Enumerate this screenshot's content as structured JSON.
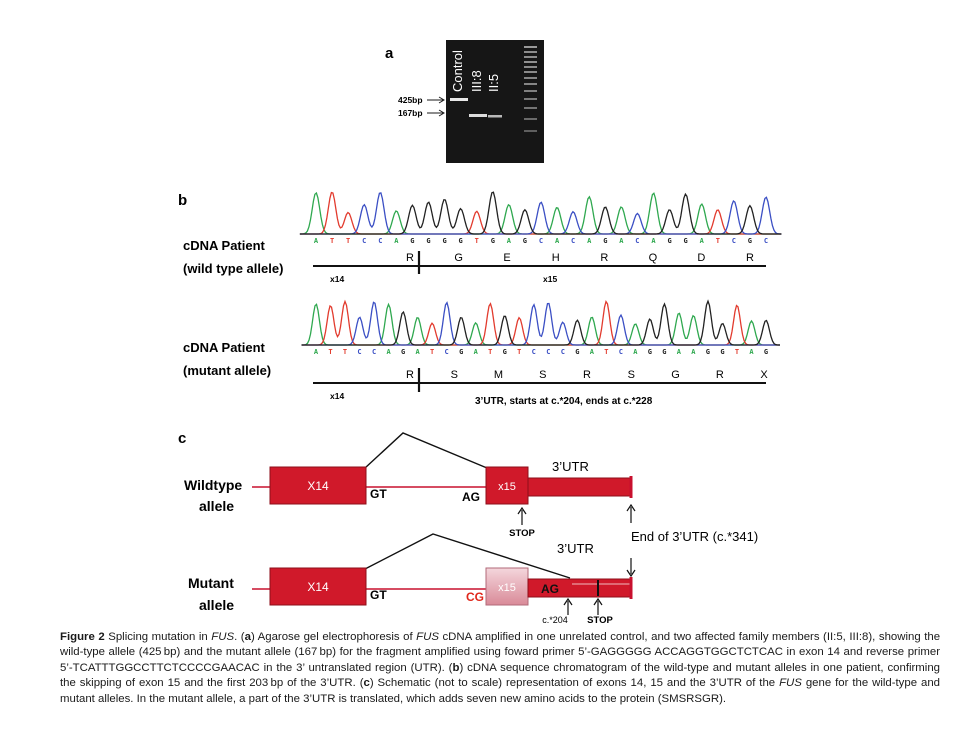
{
  "panel_a": {
    "letter": "a",
    "lanes": [
      "Control",
      "III:8",
      "II:5"
    ],
    "markers": [
      {
        "label": "425bp"
      },
      {
        "label": "167bp"
      }
    ]
  },
  "panel_b": {
    "letter": "b",
    "wild": {
      "label_1": "cDNA Patient",
      "label_2": "(wild type allele)",
      "sequence": "ATTCCAGGGGTGAGCACAGACAGGATCGC",
      "amino_acids": [
        "R",
        "G",
        "E",
        "H",
        "R",
        "Q",
        "D",
        "R"
      ],
      "exon_left": "x14",
      "exon_right": "x15"
    },
    "mutant": {
      "label_1": "cDNA Patient",
      "label_2": "(mutant allele)",
      "sequence": "ATTCCAGATCGATGTCCCGATCAGGAAGGTAG",
      "amino_acids": [
        "R",
        "S",
        "M",
        "S",
        "R",
        "S",
        "G",
        "R",
        "X"
      ],
      "exon_left": "x14",
      "utr_note": "3’UTR, starts at c.*204, ends at c.*228"
    }
  },
  "panel_c": {
    "letter": "c",
    "wild": {
      "label_1": "Wildtype",
      "label_2": "allele",
      "exon14": "X14",
      "exon15": "x15",
      "donor": "GT",
      "acceptor": "AG",
      "utr": "3’UTR",
      "stop": "STOP",
      "end_note": "End of 3’UTR (c.*341)"
    },
    "mutant": {
      "label_1": "Mutant",
      "label_2": "allele",
      "exon14": "X14",
      "exon15": "x15",
      "donor": "GT",
      "cryptic": "CG",
      "acceptor": "AG",
      "utr": "3’UTR",
      "pos": "c.*204",
      "stop": "STOP"
    },
    "colors": {
      "exon": "#d0192a",
      "exon_light": "#e6b4bc",
      "line": "#c8102e"
    }
  },
  "caption": {
    "lead": "Figure 2",
    "body_html": "Splicing mutation in <i>FUS</i>. (<b>a</b>) Agarose gel electrophoresis of <i>FUS</i> cDNA amplified in one unrelated control, and two affected family members (II:5, III:8), showing the wild-type allele (425 bp) and the mutant allele (167 bp) for the fragment amplified using foward primer 5’-GAGGGGG ACCAGGTGGCTCTCAC in exon 14 and reverse primer 5’-TCATTTGGCCTTCTCCCCGAACAC in the 3’ untranslated region (UTR). (<b>b</b>) cDNA sequence chromatogram of the wild-type and mutant alleles in one patient, confirming the skipping of exon 15 and the first 203 bp of the 3’UTR. (<b>c</b>) Schematic (not to scale) representation of exons 14, 15 and the 3’UTR of the <i>FUS</i> gene for the wild-type and mutant alleles. In the mutant allele, a part of the 3’UTR is translated, which adds seven new amino acids to the protein (SMSRSGR)."
  }
}
